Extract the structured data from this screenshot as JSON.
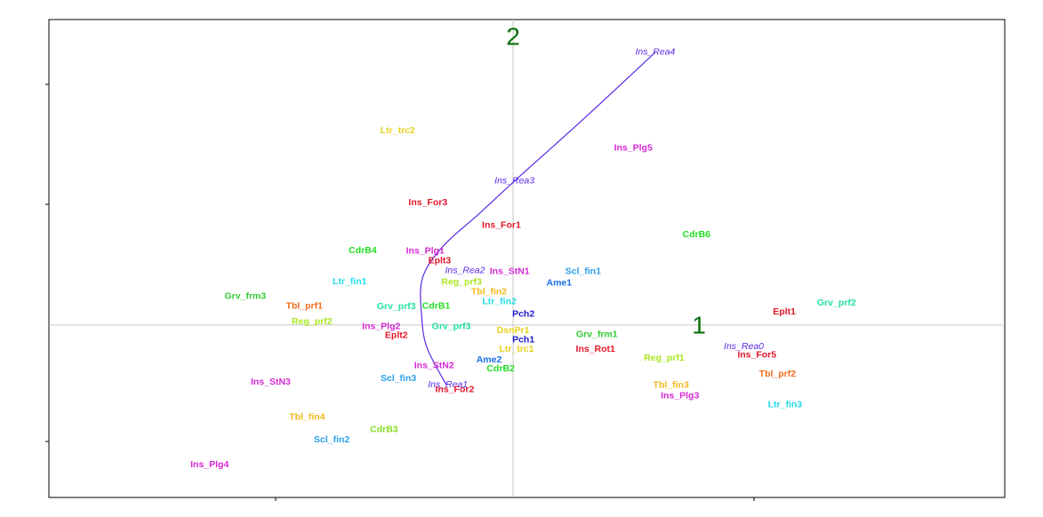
{
  "chart_data": {
    "type": "scatter",
    "title": "",
    "xlabel": "",
    "ylabel": "",
    "xlim": [
      -6.76,
      7.16
    ],
    "ylim": [
      -4.42,
      7.83
    ],
    "grid": false,
    "axis_labels": {
      "x": "1",
      "y": "2",
      "color": "#0a6e0a"
    },
    "points": [
      {
        "label": "Ltr_trc2",
        "x": -1.68,
        "y": 4.98,
        "color": "#e8d21c"
      },
      {
        "label": "Ins_Plg5",
        "x": 1.75,
        "y": 4.54,
        "color": "#d42ad4"
      },
      {
        "label": "Ins_For3",
        "x": -1.24,
        "y": 3.14,
        "color": "#e3172a"
      },
      {
        "label": "Ins_For1",
        "x": -0.17,
        "y": 2.55,
        "color": "#e3172a"
      },
      {
        "label": "CdrB6",
        "x": 2.67,
        "y": 2.31,
        "color": "#22dd22"
      },
      {
        "label": "CdrB4",
        "x": -2.19,
        "y": 1.91,
        "color": "#22dd22"
      },
      {
        "label": "Ins_Plg1",
        "x": -1.28,
        "y": 1.89,
        "color": "#d42ad4"
      },
      {
        "label": "Eplt3",
        "x": -1.07,
        "y": 1.64,
        "color": "#e3172a"
      },
      {
        "label": "Ins_StN1",
        "x": -0.05,
        "y": 1.37,
        "color": "#d42ad4"
      },
      {
        "label": "Scl_fin1",
        "x": 1.02,
        "y": 1.37,
        "color": "#2aa0e8"
      },
      {
        "label": "Ltr_fin1",
        "x": -2.38,
        "y": 1.11,
        "color": "#22dde8"
      },
      {
        "label": "Reg_prf3",
        "x": -0.75,
        "y": 1.1,
        "color": "#a8e820"
      },
      {
        "label": "Ame1",
        "x": 0.67,
        "y": 1.07,
        "color": "#1a6ee8"
      },
      {
        "label": "Tbl_fin2",
        "x": -0.35,
        "y": 0.85,
        "color": "#f2b81c"
      },
      {
        "label": "Grv_frm3",
        "x": -3.9,
        "y": 0.73,
        "color": "#33cc33"
      },
      {
        "label": "Ltr_fin2",
        "x": -0.2,
        "y": 0.6,
        "color": "#22dde8"
      },
      {
        "label": "Grv_prf2",
        "x": 4.71,
        "y": 0.56,
        "color": "#22e0a8"
      },
      {
        "label": "Tbl_prf1",
        "x": -3.04,
        "y": 0.48,
        "color": "#f06a1c"
      },
      {
        "label": "Grv_prf3",
        "x": -1.7,
        "y": 0.47,
        "color": "#22e0a8"
      },
      {
        "label": "CdrB1",
        "x": -1.12,
        "y": 0.48,
        "color": "#22dd22"
      },
      {
        "label": "Eplt1",
        "x": 3.95,
        "y": 0.33,
        "color": "#e3172a"
      },
      {
        "label": "Pch2",
        "x": 0.15,
        "y": 0.28,
        "color": "#1a1acc"
      },
      {
        "label": "Reg_prf2",
        "x": -2.93,
        "y": 0.08,
        "color": "#a8e820"
      },
      {
        "label": "Ins_Plg2",
        "x": -1.92,
        "y": -0.04,
        "color": "#d42ad4"
      },
      {
        "label": "Grv_prf3",
        "x": -0.9,
        "y": -0.04,
        "color": "#22e0a8"
      },
      {
        "label": "DsnPr1",
        "x": 0.0,
        "y": -0.14,
        "color": "#e8d21c"
      },
      {
        "label": "Grv_frm1",
        "x": 1.22,
        "y": -0.25,
        "color": "#33cc33"
      },
      {
        "label": "Eplt2",
        "x": -1.7,
        "y": -0.27,
        "color": "#e3172a"
      },
      {
        "label": "Pch1",
        "x": 0.15,
        "y": -0.38,
        "color": "#1a1acc"
      },
      {
        "label": "Ltr_trc1",
        "x": 0.05,
        "y": -0.62,
        "color": "#e8d21c"
      },
      {
        "label": "Ins_Rot1",
        "x": 1.2,
        "y": -0.62,
        "color": "#e3172a"
      },
      {
        "label": "Ins_For5",
        "x": 3.55,
        "y": -0.77,
        "color": "#e3172a"
      },
      {
        "label": "Reg_prf1",
        "x": 2.2,
        "y": -0.85,
        "color": "#a8e820"
      },
      {
        "label": "Ame2",
        "x": -0.35,
        "y": -0.9,
        "color": "#1a6ee8"
      },
      {
        "label": "Ins_StN2",
        "x": -1.15,
        "y": -1.04,
        "color": "#d42ad4"
      },
      {
        "label": "CdrB2",
        "x": -0.18,
        "y": -1.12,
        "color": "#22dd22"
      },
      {
        "label": "Tbl_prf2",
        "x": 3.85,
        "y": -1.26,
        "color": "#f06a1c"
      },
      {
        "label": "Scl_fin3",
        "x": -1.67,
        "y": -1.37,
        "color": "#2aa0e8"
      },
      {
        "label": "Ins_StN3",
        "x": -3.53,
        "y": -1.46,
        "color": "#d42ad4"
      },
      {
        "label": "Tbl_fin3",
        "x": 2.3,
        "y": -1.55,
        "color": "#f2b81c"
      },
      {
        "label": "Ins_For2",
        "x": -0.85,
        "y": -1.66,
        "color": "#e3172a"
      },
      {
        "label": "Ins_Plg3",
        "x": 2.43,
        "y": -1.82,
        "color": "#d42ad4"
      },
      {
        "label": "Ltr_fin3",
        "x": 3.96,
        "y": -2.05,
        "color": "#22dde8"
      },
      {
        "label": "Tbl_fin4",
        "x": -3.0,
        "y": -2.37,
        "color": "#f2b81c"
      },
      {
        "label": "CdrB3",
        "x": -1.88,
        "y": -2.68,
        "color": "#88dd22"
      },
      {
        "label": "Scl_fin2",
        "x": -2.64,
        "y": -2.94,
        "color": "#2aa0e8"
      },
      {
        "label": "Ins_Plg4",
        "x": -4.42,
        "y": -3.58,
        "color": "#d42ad4"
      }
    ],
    "trajectory": {
      "name": "Ins_Rea",
      "color": "#5a28e8",
      "points": [
        {
          "label": "Ins_Rea4",
          "x": 2.07,
          "y": 6.99
        },
        {
          "label": "Ins_Rea3",
          "x": 0.02,
          "y": 3.69
        },
        {
          "label": "Ins_Rea2",
          "x": -0.7,
          "y": 1.39
        },
        {
          "label": "Ins_Rea1",
          "x": -0.95,
          "y": -1.53
        },
        {
          "label": "Ins_Rea0",
          "x": 3.36,
          "y": -0.55
        }
      ],
      "curve": [
        [
          2.07,
          6.99
        ],
        [
          1.0,
          5.24
        ],
        [
          0.02,
          3.69
        ],
        [
          -0.49,
          2.86
        ],
        [
          -1.02,
          2.02
        ],
        [
          -1.32,
          1.2
        ],
        [
          -1.33,
          0.2
        ],
        [
          -1.25,
          -0.6
        ],
        [
          -0.97,
          -1.54
        ]
      ]
    }
  }
}
